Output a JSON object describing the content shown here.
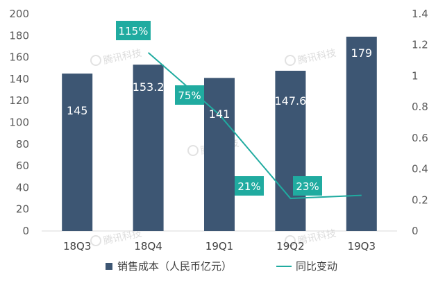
{
  "chart_data": {
    "type": "bar+line",
    "categories": [
      "18Q3",
      "18Q4",
      "19Q1",
      "19Q2",
      "19Q3"
    ],
    "series": [
      {
        "name": "销售成本（人民币亿元）",
        "type": "bar",
        "axis": "left",
        "values": [
          145,
          153.2,
          141,
          147.6,
          179
        ],
        "labels": [
          "145",
          "153.2",
          "141",
          "147.6",
          "179"
        ],
        "color": "#3d5673"
      },
      {
        "name": "同比变动",
        "type": "line",
        "axis": "right",
        "values": [
          null,
          1.15,
          0.75,
          0.21,
          0.23
        ],
        "labels": [
          null,
          "115%",
          "75%",
          "21%",
          "23%"
        ],
        "color": "#20aba0"
      }
    ],
    "y_left": {
      "ylim": [
        0,
        200
      ],
      "ticks": [
        "0",
        "20",
        "40",
        "60",
        "80",
        "100",
        "120",
        "140",
        "160",
        "180",
        "200"
      ]
    },
    "y_right": {
      "ylim": [
        0,
        1.4
      ],
      "ticks": [
        "0",
        "0.2",
        "0.4",
        "0.6",
        "0.8",
        "1",
        "1.2",
        "1.4"
      ]
    },
    "legend_position": "bottom",
    "grid": false,
    "watermark": "腾讯科技"
  }
}
